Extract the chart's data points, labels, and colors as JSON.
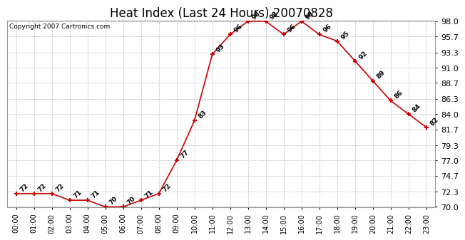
{
  "title": "Heat Index (Last 24 Hours) 20070828",
  "copyright": "Copyright 2007 Cartronics.com",
  "hours": [
    "00:00",
    "01:00",
    "02:00",
    "03:00",
    "04:00",
    "05:00",
    "06:00",
    "07:00",
    "08:00",
    "09:00",
    "10:00",
    "11:00",
    "12:00",
    "13:00",
    "14:00",
    "15:00",
    "16:00",
    "17:00",
    "18:00",
    "19:00",
    "20:00",
    "21:00",
    "22:00",
    "23:00"
  ],
  "values": [
    72,
    72,
    72,
    71,
    71,
    70,
    70,
    71,
    72,
    77,
    83,
    93,
    96,
    98,
    98,
    96,
    98,
    96,
    95,
    92,
    89,
    86,
    84,
    82
  ],
  "ylim_min": 70.0,
  "ylim_max": 98.0,
  "yticks": [
    70.0,
    72.3,
    74.7,
    77.0,
    79.3,
    81.7,
    84.0,
    86.3,
    88.7,
    91.0,
    93.3,
    95.7,
    98.0
  ],
  "line_color": "#cc0000",
  "marker_color": "#cc0000",
  "background_color": "#ffffff",
  "grid_color": "#bbbbbb",
  "title_fontsize": 12,
  "label_fontsize": 6.5,
  "tick_fontsize": 8,
  "xtick_fontsize": 7,
  "copyright_fontsize": 6.5
}
